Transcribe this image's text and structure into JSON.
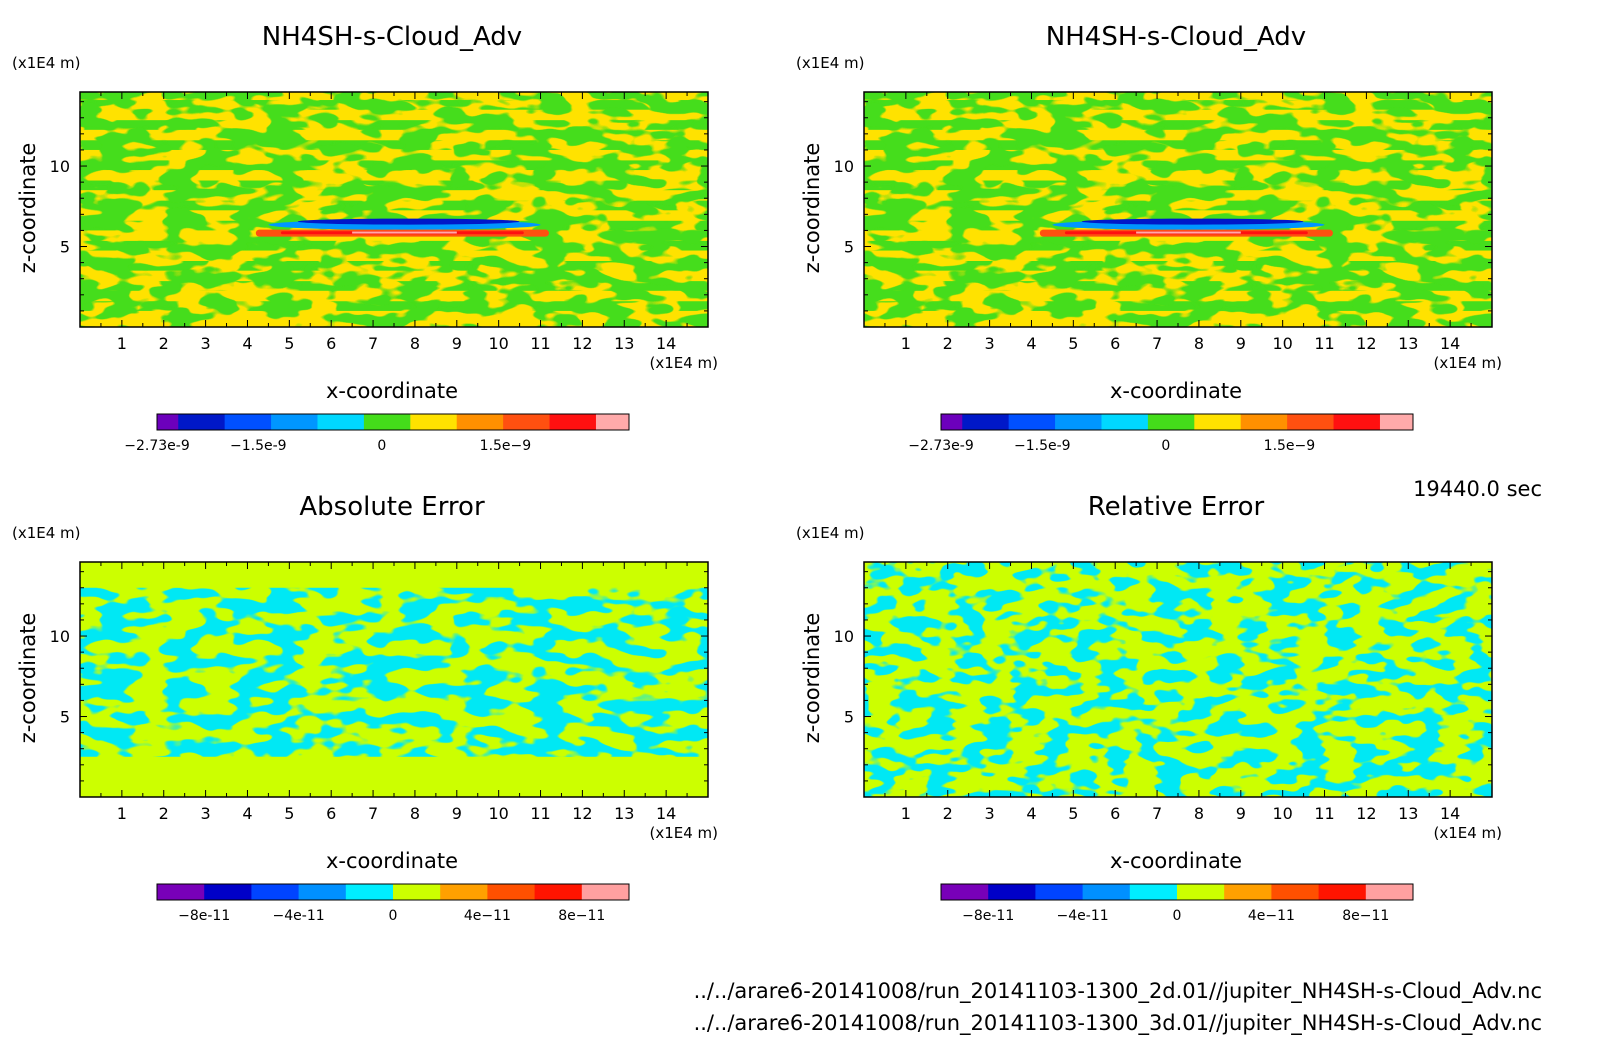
{
  "timestamp": "19440.0 sec",
  "files": [
    "../../arare6-20141008/run_20141103-1300_2d.01//jupiter_NH4SH-s-Cloud_Adv.nc",
    "../../arare6-20141008/run_20141103-1300_3d.01//jupiter_NH4SH-s-Cloud_Adv.nc"
  ],
  "colors": {
    "bg_field": "#ffe200",
    "field_green": "#44dd1a",
    "err_bg": "#ccff00",
    "err_cyan": "#00e8f4",
    "jet": [
      "#6c00bc",
      "#0018c8",
      "#0050ff",
      "#0096ff",
      "#00d8ff",
      "#44dd1a",
      "#ffe200",
      "#ff9000",
      "#ff5010",
      "#ff1010",
      "#ffaaaa"
    ],
    "err": [
      "#7800b8",
      "#0000c8",
      "#0044ff",
      "#0090ff",
      "#00eeff",
      "#ccff00",
      "#ffa000",
      "#ff5000",
      "#ff1400",
      "#ffa0a0"
    ]
  },
  "chart_data": [
    {
      "type": "heatmap",
      "title": "NH4SH-s-Cloud_Adv",
      "xlabel": "x-coordinate",
      "ylabel": "z-coordinate",
      "x_unit": "(x1E4 m)",
      "y_unit": "(x1E4 m)",
      "xlim": [
        0,
        15
      ],
      "ylim": [
        0,
        14.6
      ],
      "x_ticks": [
        1,
        2,
        3,
        4,
        5,
        6,
        7,
        8,
        9,
        10,
        11,
        12,
        13,
        14
      ],
      "y_ticks": [
        5,
        10
      ],
      "colorbar": {
        "labels": [
          "-2.73e-9",
          "-1.5e-9",
          "0",
          "1.5e-9"
        ],
        "range": [
          -2.73e-09,
          3e-09
        ]
      }
    },
    {
      "type": "heatmap",
      "title": "NH4SH-s-Cloud_Adv",
      "xlabel": "x-coordinate",
      "ylabel": "z-coordinate",
      "x_unit": "(x1E4 m)",
      "y_unit": "(x1E4 m)",
      "xlim": [
        0,
        15
      ],
      "ylim": [
        0,
        14.6
      ],
      "x_ticks": [
        1,
        2,
        3,
        4,
        5,
        6,
        7,
        8,
        9,
        10,
        11,
        12,
        13,
        14
      ],
      "y_ticks": [
        5,
        10
      ],
      "colorbar": {
        "labels": [
          "-2.73e-9",
          "-1.5e-9",
          "0",
          "1.5e-9"
        ],
        "range": [
          -2.73e-09,
          3e-09
        ]
      }
    },
    {
      "type": "heatmap",
      "title": "Absolute Error",
      "xlabel": "x-coordinate",
      "ylabel": "z-coordinate",
      "x_unit": "(x1E4 m)",
      "y_unit": "(x1E4 m)",
      "xlim": [
        0,
        15
      ],
      "ylim": [
        0,
        14.6
      ],
      "x_ticks": [
        1,
        2,
        3,
        4,
        5,
        6,
        7,
        8,
        9,
        10,
        11,
        12,
        13,
        14
      ],
      "y_ticks": [
        5,
        10
      ],
      "colorbar": {
        "labels": [
          "-8e-11",
          "-4e-11",
          "0",
          "4e-11",
          "8e-11"
        ],
        "range": [
          -1e-10,
          1e-10
        ]
      }
    },
    {
      "type": "heatmap",
      "title": "Relative Error",
      "xlabel": "x-coordinate",
      "ylabel": "z-coordinate",
      "x_unit": "(x1E4 m)",
      "y_unit": "(x1E4 m)",
      "xlim": [
        0,
        15
      ],
      "ylim": [
        0,
        14.6
      ],
      "x_ticks": [
        1,
        2,
        3,
        4,
        5,
        6,
        7,
        8,
        9,
        10,
        11,
        12,
        13,
        14
      ],
      "y_ticks": [
        5,
        10
      ],
      "colorbar": {
        "labels": [
          "-8e-11",
          "-4e-11",
          "0",
          "4e-11",
          "8e-11"
        ],
        "range": [
          -1e-10,
          1e-10
        ]
      }
    }
  ]
}
